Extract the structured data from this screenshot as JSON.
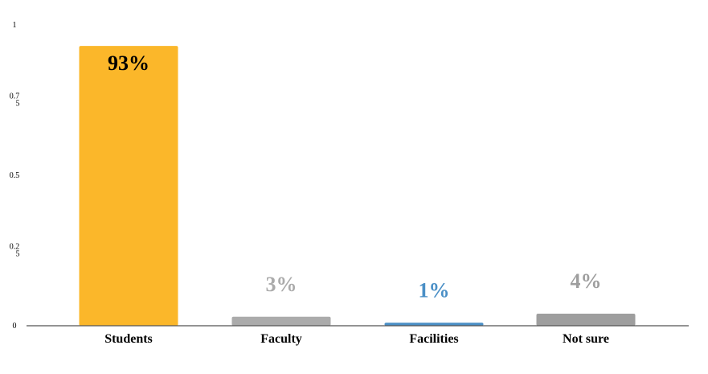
{
  "chart_data": {
    "type": "bar",
    "categories": [
      "Students",
      "Faculty",
      "Facilities",
      "Not sure"
    ],
    "values": [
      0.93,
      0.03,
      0.01,
      0.04
    ],
    "data_labels": [
      "93%",
      "3%",
      "1%",
      "4%"
    ],
    "bar_colors": [
      "#FBB72A",
      "#ABABAB",
      "#4A8FC6",
      "#9E9E9E"
    ],
    "label_colors": [
      "#000000",
      "#ABABAB",
      "#4A8FC6",
      "#9E9E9E"
    ],
    "y_ticks": [
      {
        "value": 0,
        "label": "0"
      },
      {
        "value": 0.25,
        "label": "0.25"
      },
      {
        "value": 0.5,
        "label": "0.5"
      },
      {
        "value": 0.75,
        "label": "0.75"
      },
      {
        "value": 1,
        "label": "1"
      }
    ],
    "ylim": [
      0,
      1
    ],
    "title": "",
    "xlabel": "",
    "ylabel": "",
    "grid": false,
    "legend": "none"
  }
}
